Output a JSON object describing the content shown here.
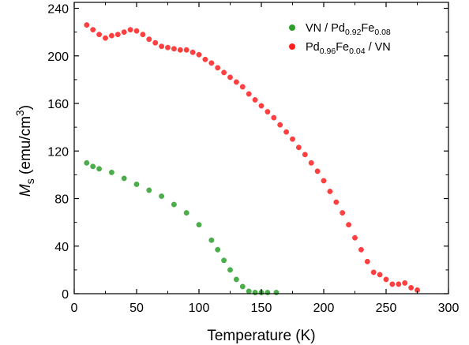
{
  "chart_data": {
    "type": "scatter",
    "xlabel": "Temperature (K)",
    "ylabel": {
      "symbol": "M",
      "sub": "s",
      "unit": " (emu/cm",
      "sup": "3",
      "close": ")"
    },
    "xlim": [
      0,
      300
    ],
    "ylim": [
      0,
      245
    ],
    "xticks": [
      0,
      50,
      100,
      150,
      200,
      250,
      300
    ],
    "yticks": [
      0,
      40,
      80,
      120,
      160,
      200,
      240
    ],
    "grid": false,
    "legend_position": "top-right",
    "legend": [
      {
        "key": "VN / Pd0.92Fe0.08",
        "parts": [
          {
            "t": "VN / Pd"
          },
          {
            "t": "0.92",
            "sub": true
          },
          {
            "t": "Fe"
          },
          {
            "t": "0.08",
            "sub": true
          }
        ]
      },
      {
        "key": "Pd0.96Fe0.04 / VN",
        "parts": [
          {
            "t": "Pd"
          },
          {
            "t": "0.96",
            "sub": true
          },
          {
            "t": "Fe"
          },
          {
            "t": "0.04",
            "sub": true
          },
          {
            "t": " / VN"
          }
        ]
      }
    ],
    "series": [
      {
        "name": "VN / Pd0.92Fe0.08",
        "color": "#2ca02c",
        "x": [
          10,
          15,
          20,
          30,
          40,
          50,
          60,
          70,
          80,
          90,
          100,
          110,
          115,
          120,
          125,
          130,
          135,
          140,
          145,
          150,
          155,
          162
        ],
        "y": [
          110,
          107,
          105,
          102,
          97,
          92,
          87,
          82,
          75,
          68,
          58,
          45,
          37,
          28,
          20,
          12,
          6,
          2,
          1,
          1,
          1,
          1
        ]
      },
      {
        "name": "Pd0.96Fe0.04 / VN",
        "color": "#ff1f1f",
        "x": [
          10,
          15,
          20,
          25,
          30,
          35,
          40,
          45,
          50,
          55,
          60,
          65,
          70,
          75,
          80,
          85,
          90,
          95,
          100,
          105,
          110,
          115,
          120,
          125,
          130,
          135,
          140,
          145,
          150,
          155,
          160,
          165,
          170,
          175,
          180,
          185,
          190,
          195,
          200,
          205,
          210,
          215,
          220,
          225,
          230,
          235,
          240,
          245,
          250,
          255,
          260,
          265,
          270,
          275
        ],
        "y": [
          226,
          222,
          218,
          215,
          217,
          218,
          220,
          222,
          221,
          218,
          214,
          211,
          208,
          207,
          206,
          205,
          205,
          203,
          201,
          197,
          194,
          190,
          186,
          182,
          178,
          174,
          168,
          163,
          158,
          153,
          148,
          142,
          136,
          130,
          123,
          117,
          110,
          103,
          95,
          86,
          77,
          68,
          58,
          47,
          37,
          27,
          18,
          16,
          12,
          8,
          8,
          9,
          5,
          3
        ]
      }
    ]
  }
}
